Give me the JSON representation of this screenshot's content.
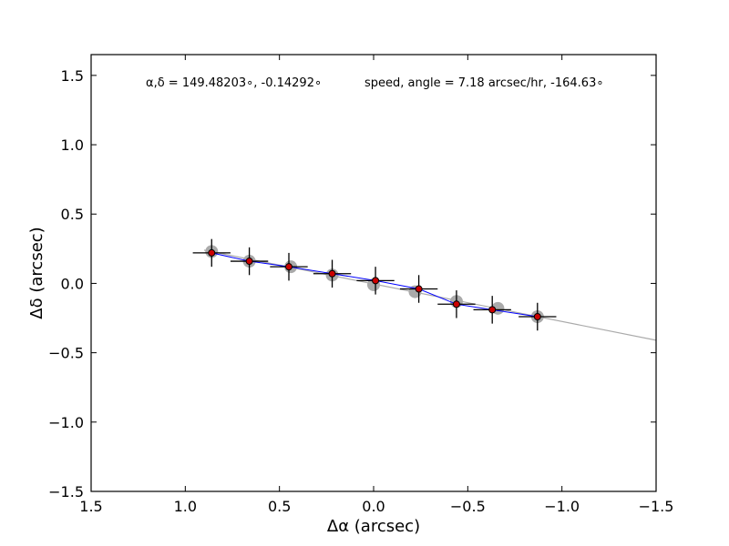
{
  "chart_data": {
    "type": "scatter",
    "title": "",
    "xlabel": "Δα (arcsec)",
    "ylabel": "Δδ (arcsec)",
    "xlim": [
      1.5,
      -1.5
    ],
    "ylim": [
      -1.5,
      1.65
    ],
    "x_inverted": true,
    "grid": false,
    "x_ticks": [
      1.5,
      1.0,
      0.5,
      0.0,
      -0.5,
      -1.0,
      -1.5
    ],
    "x_tick_labels": [
      "1.5",
      "1.0",
      "0.5",
      "0.0",
      "−0.5",
      "−1.0",
      "−1.5"
    ],
    "y_ticks": [
      1.5,
      1.0,
      0.5,
      0.0,
      -0.5,
      -1.0,
      -1.5
    ],
    "y_tick_labels": [
      "1.5",
      "1.0",
      "0.5",
      "0.0",
      "−0.5",
      "−1.0",
      "−1.5"
    ],
    "annotations": [
      "α,δ = 149.48203∘, -0.14292∘",
      "speed, angle = 7.18 arcsec/hr, -164.63∘"
    ],
    "series": [
      {
        "kind": "model-points",
        "color": "#aaaaaa",
        "x": [
          0.86,
          0.66,
          0.44,
          0.22,
          0.0,
          -0.22,
          -0.44,
          -0.66,
          -0.87
        ],
        "y": [
          0.23,
          0.16,
          0.12,
          0.06,
          -0.01,
          -0.06,
          -0.13,
          -0.18,
          -0.24
        ]
      },
      {
        "kind": "measured-points",
        "color": "#cc0000",
        "x": [
          0.86,
          0.66,
          0.45,
          0.22,
          -0.01,
          -0.24,
          -0.44,
          -0.63,
          -0.87
        ],
        "y": [
          0.22,
          0.16,
          0.12,
          0.07,
          0.02,
          -0.04,
          -0.15,
          -0.19,
          -0.24
        ],
        "xerr": [
          0.1,
          0.1,
          0.1,
          0.1,
          0.1,
          0.1,
          0.1,
          0.1,
          0.1
        ],
        "yerr": [
          0.1,
          0.1,
          0.1,
          0.1,
          0.1,
          0.1,
          0.1,
          0.1,
          0.1
        ]
      },
      {
        "kind": "connecting-line",
        "color": "#0000ff"
      },
      {
        "kind": "fit-line",
        "color": "#aaaaaa",
        "x": [
          0.9,
          -1.5
        ],
        "y": [
          0.24,
          -0.41
        ]
      }
    ]
  }
}
